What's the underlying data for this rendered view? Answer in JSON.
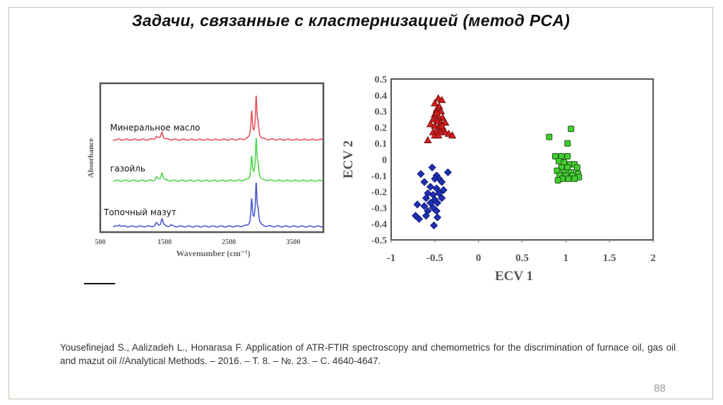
{
  "slide": {
    "title": "Задачи, связанные с кластернизацией (метод PCA)",
    "citation": "Yousefinejad S., Aalizadeh L., Honarasa F. Application of ATR-FTIR spectroscopy and chemometrics for the discrimination of furnace oil, gas oil and mazut oil //Analytical Methods. – 2016. – Т. 8. – №. 23. – С. 4640-4647.",
    "page_number": "88"
  },
  "chart_data": [
    {
      "type": "line",
      "title": "",
      "xlabel": "Wavenumber (cm⁻¹)",
      "ylabel": "Absorbance",
      "xlim": [
        500,
        3970
      ],
      "ylim": [
        0,
        3.3
      ],
      "x_ticks": [
        "500",
        "1500",
        "2500",
        "3500"
      ],
      "x_tick_values": [
        500,
        1500,
        2500,
        3500
      ],
      "grid": false,
      "series": [
        {
          "name": "Минеральное масло",
          "color": "#e8535b",
          "x_start": 700,
          "baseline": 2.05,
          "peaks": [
            {
              "x": 1375,
              "h": 0.07
            },
            {
              "x": 1460,
              "h": 0.17
            },
            {
              "x": 2855,
              "h": 0.62
            },
            {
              "x": 2925,
              "h": 0.9
            },
            {
              "x": 2955,
              "h": 0.25
            }
          ]
        },
        {
          "name": "газойль",
          "color": "#4fd54f",
          "x_start": 700,
          "baseline": 1.14,
          "peaks": [
            {
              "x": 1375,
              "h": 0.07
            },
            {
              "x": 1460,
              "h": 0.18
            },
            {
              "x": 2855,
              "h": 0.52
            },
            {
              "x": 2925,
              "h": 0.88
            },
            {
              "x": 2955,
              "h": 0.25
            }
          ]
        },
        {
          "name": "Топочный мазут",
          "color": "#4a5bd0",
          "x_start": 700,
          "baseline": 0.125,
          "peaks": [
            {
              "x": 800,
              "h": 0.04
            },
            {
              "x": 1375,
              "h": 0.07
            },
            {
              "x": 1460,
              "h": 0.17
            },
            {
              "x": 1600,
              "h": 0.03
            },
            {
              "x": 2855,
              "h": 0.58
            },
            {
              "x": 2925,
              "h": 0.92
            },
            {
              "x": 2955,
              "h": 0.25
            }
          ]
        }
      ]
    },
    {
      "type": "scatter",
      "title": "",
      "xlabel": "ECV 1",
      "ylabel": "ECV 2",
      "xlim": [
        -1,
        2
      ],
      "ylim": [
        -0.5,
        0.5
      ],
      "x_ticks": [
        "-1",
        "-0.5",
        "0",
        "0.5",
        "1",
        "1.5",
        "2"
      ],
      "x_tick_values": [
        -1,
        -0.5,
        0,
        0.5,
        1,
        1.5,
        2
      ],
      "y_ticks": [
        "0.5",
        "0.4",
        "0.3",
        "0.2",
        "0.1",
        "0",
        "-0.1",
        "-0.2",
        "-0.3",
        "-0.4",
        "-0.5"
      ],
      "y_tick_values": [
        0.5,
        0.4,
        0.3,
        0.2,
        0.1,
        0,
        -0.1,
        -0.2,
        -0.3,
        -0.4,
        -0.5
      ],
      "grid": false,
      "series": [
        {
          "name": "red-triangles",
          "marker": "triangle",
          "color": "#cc1f1f",
          "points": [
            [
              -0.46,
              0.38
            ],
            [
              -0.42,
              0.37
            ],
            [
              -0.5,
              0.35
            ],
            [
              -0.45,
              0.33
            ],
            [
              -0.48,
              0.31
            ],
            [
              -0.43,
              0.3
            ],
            [
              -0.5,
              0.28
            ],
            [
              -0.46,
              0.27
            ],
            [
              -0.41,
              0.26
            ],
            [
              -0.52,
              0.25
            ],
            [
              -0.47,
              0.24
            ],
            [
              -0.43,
              0.23
            ],
            [
              -0.38,
              0.23
            ],
            [
              -0.55,
              0.22
            ],
            [
              -0.5,
              0.21
            ],
            [
              -0.45,
              0.2
            ],
            [
              -0.41,
              0.19
            ],
            [
              -0.48,
              0.18
            ],
            [
              -0.52,
              0.17
            ],
            [
              -0.44,
              0.17
            ],
            [
              -0.38,
              0.17
            ],
            [
              -0.5,
              0.15
            ],
            [
              -0.46,
              0.15
            ],
            [
              -0.34,
              0.16
            ],
            [
              -0.3,
              0.15
            ],
            [
              -0.58,
              0.12
            ],
            [
              -0.42,
              0.21
            ],
            [
              -0.48,
              0.29
            ]
          ]
        },
        {
          "name": "blue-diamonds",
          "marker": "diamond",
          "color": "#1f2fb0",
          "points": [
            [
              -0.53,
              -0.05
            ],
            [
              -0.66,
              -0.09
            ],
            [
              -0.35,
              -0.08
            ],
            [
              -0.48,
              -0.1
            ],
            [
              -0.45,
              -0.12
            ],
            [
              -0.5,
              -0.12
            ],
            [
              -0.62,
              -0.14
            ],
            [
              -0.42,
              -0.14
            ],
            [
              -0.55,
              -0.17
            ],
            [
              -0.48,
              -0.18
            ],
            [
              -0.4,
              -0.19
            ],
            [
              -0.58,
              -0.21
            ],
            [
              -0.52,
              -0.22
            ],
            [
              -0.45,
              -0.21
            ],
            [
              -0.6,
              -0.24
            ],
            [
              -0.5,
              -0.25
            ],
            [
              -0.42,
              -0.24
            ],
            [
              -0.55,
              -0.27
            ],
            [
              -0.47,
              -0.27
            ],
            [
              -0.62,
              -0.29
            ],
            [
              -0.7,
              -0.28
            ],
            [
              -0.52,
              -0.3
            ],
            [
              -0.58,
              -0.32
            ],
            [
              -0.48,
              -0.32
            ],
            [
              -0.72,
              -0.35
            ],
            [
              -0.6,
              -0.35
            ],
            [
              -0.68,
              -0.37
            ],
            [
              -0.47,
              -0.36
            ],
            [
              -0.51,
              -0.41
            ]
          ]
        },
        {
          "name": "green-squares",
          "marker": "square",
          "color": "#44cc33",
          "points": [
            [
              1.06,
              0.19
            ],
            [
              0.81,
              0.14
            ],
            [
              1.02,
              0.1
            ],
            [
              0.88,
              0.02
            ],
            [
              0.95,
              0.02
            ],
            [
              1.02,
              0.02
            ],
            [
              0.92,
              -0.01
            ],
            [
              0.98,
              -0.02
            ],
            [
              1.05,
              -0.03
            ],
            [
              1.1,
              -0.03
            ],
            [
              0.95,
              -0.05
            ],
            [
              1.02,
              -0.05
            ],
            [
              1.13,
              -0.05
            ],
            [
              0.9,
              -0.07
            ],
            [
              0.98,
              -0.08
            ],
            [
              1.06,
              -0.08
            ],
            [
              1.14,
              -0.09
            ],
            [
              0.93,
              -0.1
            ],
            [
              1.0,
              -0.1
            ],
            [
              1.08,
              -0.1
            ],
            [
              1.15,
              -0.11
            ],
            [
              0.96,
              -0.12
            ],
            [
              1.03,
              -0.12
            ],
            [
              0.91,
              -0.13
            ],
            [
              1.1,
              -0.12
            ]
          ]
        }
      ]
    }
  ]
}
